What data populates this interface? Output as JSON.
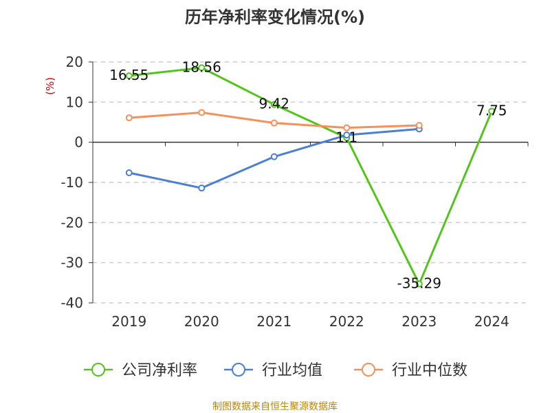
{
  "title": "历年净利率变化情况(%)",
  "source": "制图数据来自恒生聚源数据库",
  "chart_data": {
    "type": "line",
    "title": "历年净利率变化情况(%)",
    "ylabel": "(%)",
    "xlabel": "",
    "categories": [
      "2019",
      "2020",
      "2021",
      "2022",
      "2023",
      "2024"
    ],
    "ylim": [
      -40,
      20
    ],
    "yticks": [
      20,
      10,
      0,
      -10,
      -20,
      -30,
      -40
    ],
    "grid": true,
    "legend_position": "bottom",
    "series": [
      {
        "name": "公司净利率",
        "color": "#52c41a",
        "values": [
          16.55,
          18.56,
          9.42,
          1.1,
          -35.29,
          7.75
        ],
        "labels": [
          "16.55",
          "18.56",
          "9.42",
          "1.1",
          "-35.29",
          "7.75"
        ]
      },
      {
        "name": "行业均值",
        "color": "#4a7fd4",
        "values": [
          -7.6,
          -11.4,
          -3.6,
          1.8,
          3.3,
          null
        ]
      },
      {
        "name": "行业中位数",
        "color": "#f5905a",
        "values": [
          6.1,
          7.4,
          4.8,
          3.6,
          4.2,
          null
        ]
      }
    ]
  }
}
